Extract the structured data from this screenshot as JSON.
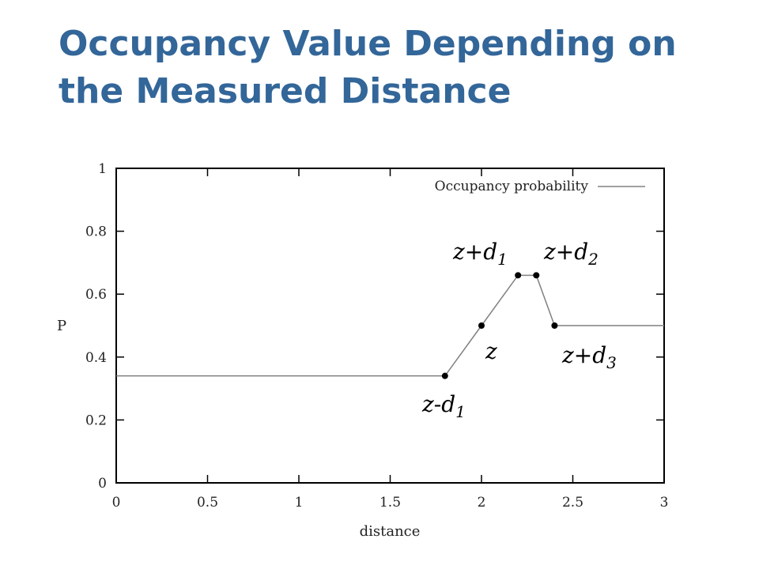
{
  "slide": {
    "title_line1": "Occupancy Value Depending on",
    "title_line2": "the Measured Distance",
    "title_color": "#336699"
  },
  "chart_data": {
    "type": "line",
    "title": "",
    "xlabel": "distance",
    "ylabel": "P",
    "xlim": [
      0,
      3
    ],
    "ylim": [
      0,
      1
    ],
    "x_ticks": [
      "0",
      "0.5",
      "1",
      "1.5",
      "2",
      "2.5",
      "3"
    ],
    "y_ticks": [
      "0",
      "0.2",
      "0.4",
      "0.6",
      "0.8",
      "1"
    ],
    "legend": "top-right",
    "grid": false,
    "series": [
      {
        "name": "Occupancy probability",
        "color": "#808080",
        "x": [
          0,
          1.8,
          2.0,
          2.2,
          2.3,
          2.4,
          3.0
        ],
        "y": [
          0.34,
          0.34,
          0.5,
          0.66,
          0.66,
          0.5,
          0.5
        ]
      }
    ],
    "markers": [
      {
        "x": 1.8,
        "y": 0.34
      },
      {
        "x": 2.0,
        "y": 0.5
      },
      {
        "x": 2.2,
        "y": 0.66
      },
      {
        "x": 2.3,
        "y": 0.66
      },
      {
        "x": 2.4,
        "y": 0.5
      }
    ],
    "annotations": [
      {
        "base": "z-d",
        "sub": "1"
      },
      {
        "base": "z",
        "sub": ""
      },
      {
        "base": "z+d",
        "sub": "1"
      },
      {
        "base": "z+d",
        "sub": "2"
      },
      {
        "base": "z+d",
        "sub": "3"
      }
    ]
  }
}
